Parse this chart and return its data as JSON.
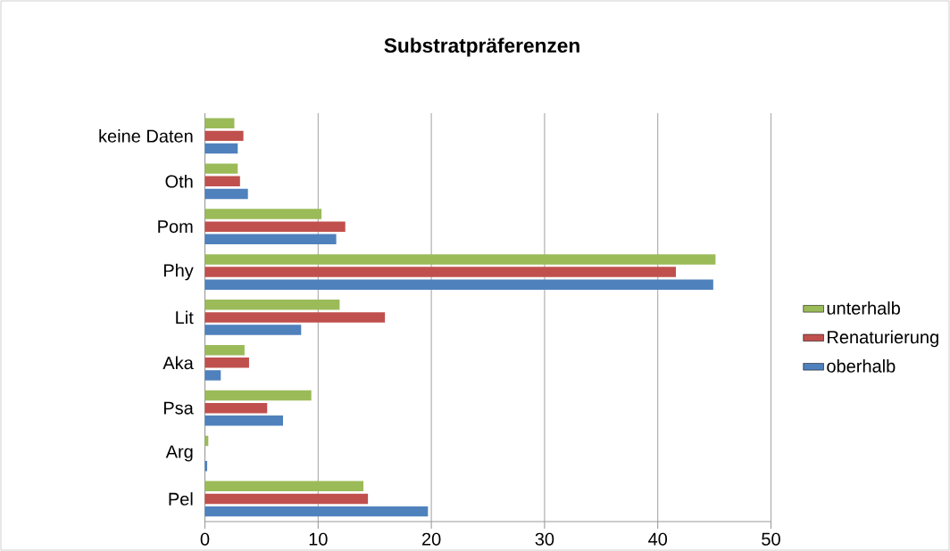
{
  "chart_data": {
    "type": "bar",
    "orientation": "horizontal",
    "title": "Substratpräferenzen",
    "categories": [
      "keine Daten",
      "Oth",
      "Pom",
      "Phy",
      "Lit",
      "Aka",
      "Psa",
      "Arg",
      "Pel"
    ],
    "series": [
      {
        "name": "oberhalb",
        "color": "#4f81bd",
        "values": [
          2.9,
          3.8,
          11.6,
          44.9,
          8.5,
          1.4,
          6.9,
          0.2,
          19.7
        ]
      },
      {
        "name": "Renaturierung",
        "color": "#c0504d",
        "values": [
          3.4,
          3.1,
          12.4,
          41.6,
          15.9,
          3.9,
          5.5,
          0,
          14.4
        ]
      },
      {
        "name": "unterhalb",
        "color": "#9bbb59",
        "values": [
          2.6,
          2.9,
          10.3,
          45.1,
          11.9,
          3.5,
          9.4,
          0.3,
          14.0
        ]
      }
    ],
    "xlim": [
      0,
      50
    ],
    "xticks": [
      0,
      10,
      20,
      30,
      40,
      50
    ],
    "grid": "x",
    "legend": "right"
  }
}
